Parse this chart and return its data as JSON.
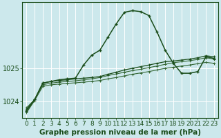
{
  "x": [
    0,
    1,
    2,
    3,
    4,
    5,
    6,
    7,
    8,
    9,
    10,
    11,
    12,
    13,
    14,
    15,
    16,
    17,
    18,
    19,
    20,
    21,
    22,
    23
  ],
  "series_peak": [
    1023.7,
    1024.05,
    1024.55,
    1024.6,
    1024.65,
    1024.68,
    1024.7,
    1025.1,
    1025.4,
    1025.55,
    1025.95,
    1026.35,
    1026.7,
    1026.75,
    1026.72,
    1026.6,
    1026.1,
    1025.55,
    1025.15,
    1024.85,
    1024.85,
    1024.9,
    1025.35,
    1025.3
  ],
  "series_mid1": [
    1023.75,
    1024.05,
    1024.55,
    1024.6,
    1024.63,
    1024.65,
    1024.68,
    1024.7,
    1024.72,
    1024.75,
    1024.82,
    1024.88,
    1024.95,
    1025.0,
    1025.05,
    1025.1,
    1025.15,
    1025.2,
    1025.22,
    1025.25,
    1025.28,
    1025.32,
    1025.38,
    1025.35
  ],
  "series_mid2": [
    1023.8,
    1024.05,
    1024.5,
    1024.55,
    1024.58,
    1024.6,
    1024.62,
    1024.65,
    1024.68,
    1024.72,
    1024.78,
    1024.83,
    1024.88,
    1024.93,
    1024.97,
    1025.02,
    1025.07,
    1025.12,
    1025.17,
    1025.2,
    1025.23,
    1025.27,
    1025.32,
    1025.28
  ],
  "series_bot": [
    1023.65,
    1024.02,
    1024.45,
    1024.5,
    1024.52,
    1024.54,
    1024.56,
    1024.58,
    1024.6,
    1024.63,
    1024.68,
    1024.72,
    1024.77,
    1024.82,
    1024.86,
    1024.9,
    1024.95,
    1025.0,
    1025.03,
    1025.07,
    1025.1,
    1025.14,
    1025.18,
    1025.15
  ],
  "background_color": "#cce8ec",
  "grid_color": "#ffffff",
  "line_color1": "#336633",
  "line_color2": "#1a4d1a",
  "xlabel": "Graphe pression niveau de la mer (hPa)",
  "ylim_min": 1023.5,
  "ylim_max": 1027.0,
  "yticks": [
    1024,
    1025
  ],
  "xlabel_fontsize": 7.5,
  "tick_fontsize": 6.5
}
